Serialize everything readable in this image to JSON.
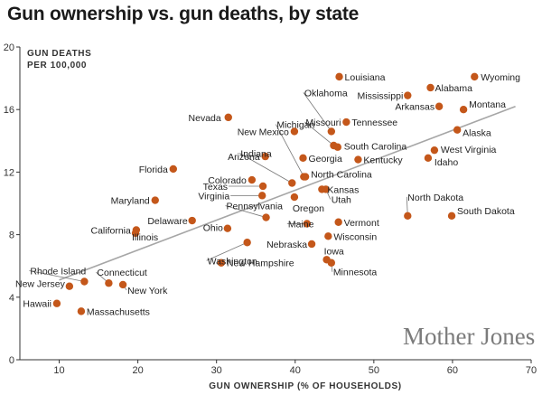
{
  "title": "Gun ownership vs. gun deaths, by state",
  "brand": "Mother Jones",
  "colors": {
    "point": "#c4571a",
    "trendline": "#a6a6a6",
    "axis": "#333333"
  },
  "chart_data": {
    "type": "scatter",
    "title": "Gun ownership vs. gun deaths, by state",
    "xlabel": "GUN OWNERSHIP (% OF HOUSEHOLDS)",
    "ylabel_line1": "GUN DEATHS",
    "ylabel_line2": "PER 100,000",
    "xlim": [
      5,
      70
    ],
    "ylim": [
      0,
      20
    ],
    "xticks": [
      10,
      20,
      30,
      40,
      50,
      60,
      70
    ],
    "yticks": [
      0,
      4,
      8,
      12,
      16,
      20
    ],
    "grid": false,
    "trendline": {
      "x": [
        10,
        68
      ],
      "y": [
        5.1,
        16.2
      ]
    },
    "points": [
      {
        "name": "Louisiana",
        "x": 45.6,
        "y": 18.1
      },
      {
        "name": "Wyoming",
        "x": 62.8,
        "y": 18.1
      },
      {
        "name": "Alabama",
        "x": 57.2,
        "y": 17.4
      },
      {
        "name": "Mississippi",
        "x": 54.3,
        "y": 16.9
      },
      {
        "name": "Arkansas",
        "x": 58.3,
        "y": 16.2
      },
      {
        "name": "Montana",
        "x": 61.4,
        "y": 16.0
      },
      {
        "name": "Oklahoma",
        "x": 44.6,
        "y": 14.6
      },
      {
        "name": "Missouri",
        "x": 44.9,
        "y": 13.7
      },
      {
        "name": "Nevada",
        "x": 31.5,
        "y": 15.5
      },
      {
        "name": "Tennessee",
        "x": 46.5,
        "y": 15.2
      },
      {
        "name": "New Mexico",
        "x": 39.9,
        "y": 14.6
      },
      {
        "name": "Alaska",
        "x": 60.6,
        "y": 14.7
      },
      {
        "name": "South Carolina",
        "x": 45.4,
        "y": 13.6
      },
      {
        "name": "Michigan",
        "x": 41.1,
        "y": 11.7
      },
      {
        "name": "Georgia",
        "x": 41.0,
        "y": 12.9
      },
      {
        "name": "Kentucky",
        "x": 48.0,
        "y": 12.8
      },
      {
        "name": "West Virginia",
        "x": 57.7,
        "y": 13.4
      },
      {
        "name": "Idaho",
        "x": 56.9,
        "y": 12.9
      },
      {
        "name": "Arizona",
        "x": 36.2,
        "y": 13.0
      },
      {
        "name": "Indiana",
        "x": 39.6,
        "y": 11.3
      },
      {
        "name": "Florida",
        "x": 24.5,
        "y": 12.2
      },
      {
        "name": "North Carolina",
        "x": 41.3,
        "y": 11.7
      },
      {
        "name": "Colorado",
        "x": 34.5,
        "y": 11.5
      },
      {
        "name": "Texas",
        "x": 35.9,
        "y": 11.1
      },
      {
        "name": "Kansas",
        "x": 43.4,
        "y": 10.9
      },
      {
        "name": "Utah",
        "x": 43.9,
        "y": 10.9
      },
      {
        "name": "Maryland",
        "x": 22.2,
        "y": 10.2
      },
      {
        "name": "Virginia",
        "x": 35.8,
        "y": 10.5
      },
      {
        "name": "Oregon",
        "x": 39.9,
        "y": 10.4
      },
      {
        "name": "North Dakota",
        "x": 54.3,
        "y": 9.2
      },
      {
        "name": "Pennsylvania",
        "x": 36.3,
        "y": 9.1
      },
      {
        "name": "Delaware",
        "x": 26.9,
        "y": 8.9
      },
      {
        "name": "Vermont",
        "x": 45.5,
        "y": 8.8
      },
      {
        "name": "South Dakota",
        "x": 59.9,
        "y": 9.2
      },
      {
        "name": "Maine",
        "x": 41.5,
        "y": 8.7
      },
      {
        "name": "Ohio",
        "x": 31.4,
        "y": 8.4
      },
      {
        "name": "California",
        "x": 19.8,
        "y": 8.3
      },
      {
        "name": "Illinois",
        "x": 19.7,
        "y": 8.1
      },
      {
        "name": "Wisconsin",
        "x": 44.2,
        "y": 7.9
      },
      {
        "name": "Washington",
        "x": 33.9,
        "y": 7.5
      },
      {
        "name": "Nebraska",
        "x": 42.1,
        "y": 7.4
      },
      {
        "name": "Iowa",
        "x": 44.0,
        "y": 6.4
      },
      {
        "name": "New Hampshire",
        "x": 30.6,
        "y": 6.2
      },
      {
        "name": "Minnesota",
        "x": 44.6,
        "y": 6.2
      },
      {
        "name": "Rhode Island",
        "x": 13.2,
        "y": 5.0
      },
      {
        "name": "Connecticut",
        "x": 16.3,
        "y": 4.9
      },
      {
        "name": "New Jersey",
        "x": 11.3,
        "y": 4.7
      },
      {
        "name": "New York",
        "x": 18.1,
        "y": 4.8
      },
      {
        "name": "Hawaii",
        "x": 9.7,
        "y": 3.6
      },
      {
        "name": "Massachusetts",
        "x": 12.8,
        "y": 3.1
      }
    ]
  }
}
